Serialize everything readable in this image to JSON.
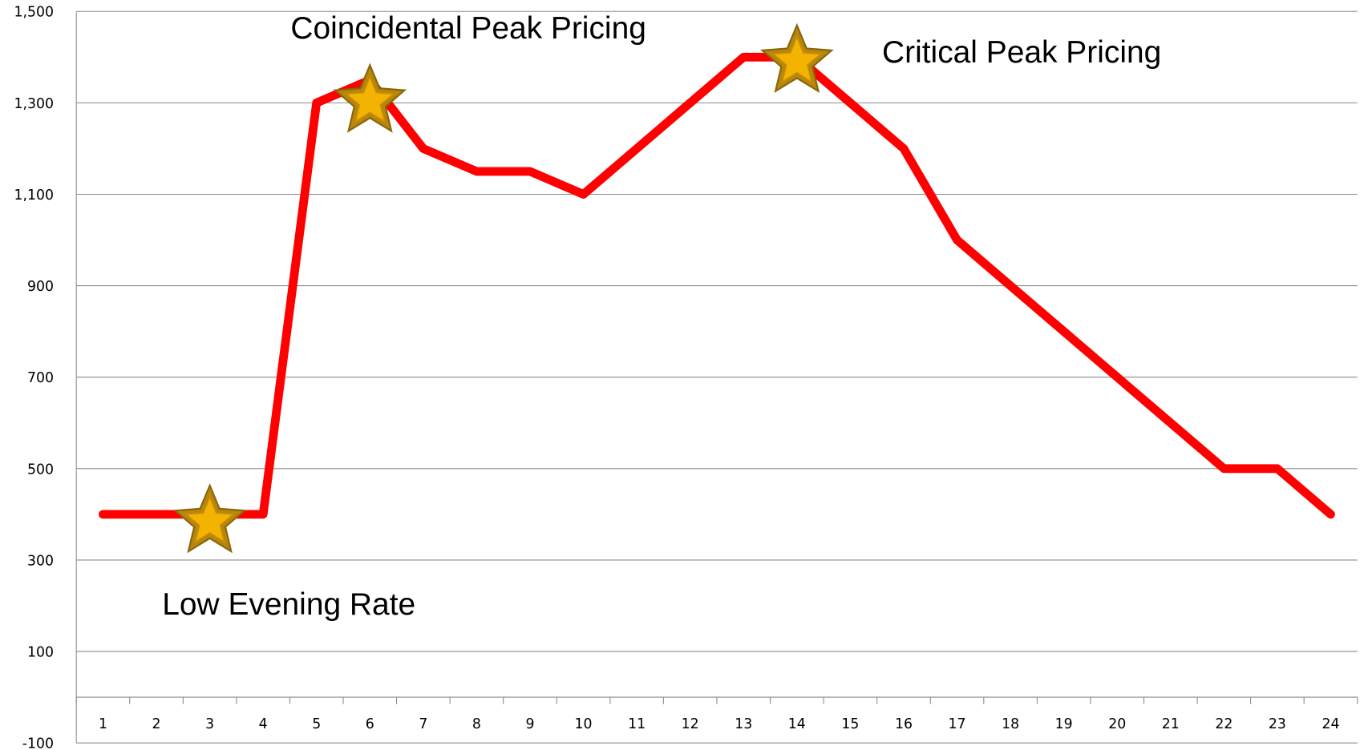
{
  "chart_data": {
    "type": "line",
    "categories": [
      "1",
      "2",
      "3",
      "4",
      "5",
      "6",
      "7",
      "8",
      "9",
      "10",
      "11",
      "12",
      "13",
      "14",
      "15",
      "16",
      "17",
      "18",
      "19",
      "20",
      "21",
      "22",
      "23",
      "24"
    ],
    "series": [
      {
        "color": "#ff0000",
        "values": [
          400,
          400,
          400,
          400,
          1300,
          1350,
          1200,
          1150,
          1150,
          1100,
          1200,
          1300,
          1400,
          1400,
          1300,
          1200,
          1000,
          900,
          800,
          700,
          600,
          500,
          500,
          400
        ]
      }
    ],
    "ylim": [
      -100,
      1500
    ],
    "yticks": [
      {
        "value": -100,
        "label": "-100"
      },
      100,
      300,
      500,
      700,
      900,
      {
        "value": 1100,
        "label": "1,100"
      },
      {
        "value": 1300,
        "label": "1,300"
      },
      {
        "value": 1500,
        "label": "1,500"
      }
    ],
    "grid": true,
    "annotations": [
      "Coincidental Peak Pricing",
      "Critical Peak Pricing",
      "Low Evening Rate"
    ]
  }
}
